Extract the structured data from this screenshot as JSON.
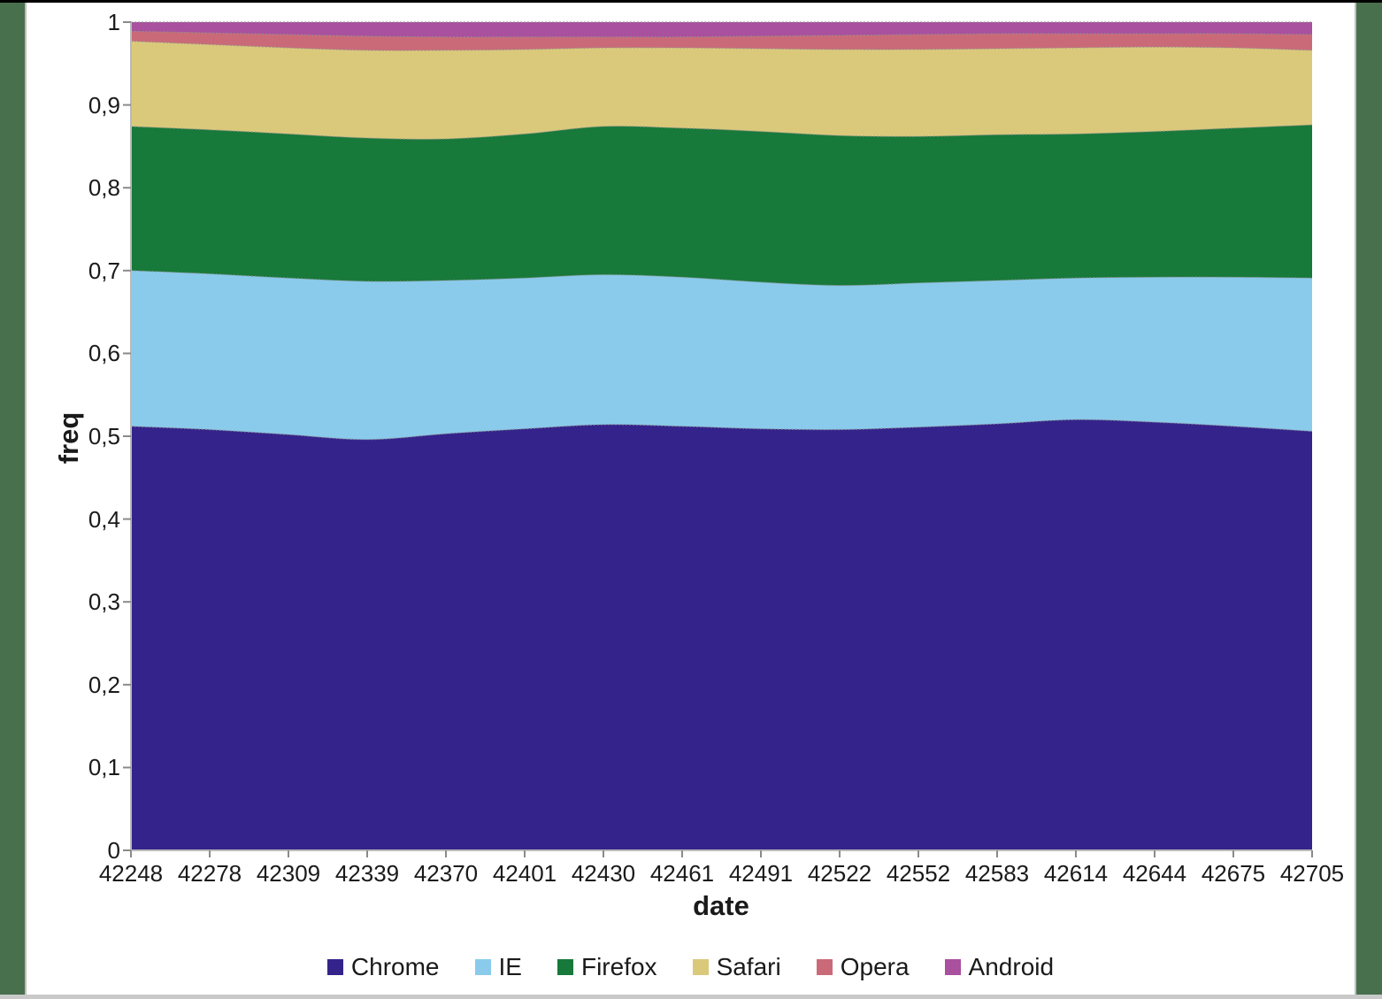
{
  "page": {
    "background_color": "#48704D",
    "canvas_color": "#FFFFFF",
    "top_strip_color": "#000000",
    "bottom_strip_color": "#C9C9C9",
    "canvas_border_color": "#BEBEBE",
    "text_color": "#1A1A1A",
    "axis_line_color": "#B9B9B9",
    "tick_mark_color": "#8A8A8A",
    "boundary_line_color": "#909090"
  },
  "chart_data": {
    "type": "area",
    "stacked": true,
    "normalized": true,
    "title": "",
    "xlabel": "date",
    "ylabel": "freq",
    "ylim": [
      0,
      1
    ],
    "grid": false,
    "legend_position": "bottom",
    "x": [
      42248,
      42278,
      42309,
      42339,
      42370,
      42401,
      42430,
      42461,
      42491,
      42522,
      42552,
      42583,
      42614,
      42644,
      42675,
      42705
    ],
    "x_tick_labels": [
      "42248",
      "42278",
      "42309",
      "42339",
      "42370",
      "42401",
      "42430",
      "42461",
      "42491",
      "42522",
      "42552",
      "42583",
      "42614",
      "42644",
      "42675",
      "42705"
    ],
    "y_tick_labels": [
      "0",
      "0,1",
      "0,2",
      "0,3",
      "0,4",
      "0,5",
      "0,6",
      "0,7",
      "0,8",
      "0,9",
      "1"
    ],
    "series": [
      {
        "name": "Chrome",
        "color": "#34238B",
        "values": [
          0.512,
          0.508,
          0.502,
          0.496,
          0.503,
          0.509,
          0.514,
          0.512,
          0.509,
          0.508,
          0.511,
          0.515,
          0.52,
          0.517,
          0.512,
          0.506
        ]
      },
      {
        "name": "IE",
        "color": "#8ACBEC",
        "values": [
          0.188,
          0.188,
          0.189,
          0.191,
          0.185,
          0.182,
          0.181,
          0.18,
          0.177,
          0.174,
          0.174,
          0.173,
          0.171,
          0.175,
          0.18,
          0.185
        ]
      },
      {
        "name": "Firefox",
        "color": "#17793A",
        "values": [
          0.174,
          0.174,
          0.174,
          0.173,
          0.171,
          0.174,
          0.179,
          0.18,
          0.182,
          0.181,
          0.177,
          0.176,
          0.174,
          0.176,
          0.18,
          0.185
        ]
      },
      {
        "name": "Safari",
        "color": "#DBC97B",
        "values": [
          0.103,
          0.103,
          0.104,
          0.106,
          0.107,
          0.102,
          0.095,
          0.097,
          0.1,
          0.104,
          0.105,
          0.104,
          0.104,
          0.102,
          0.097,
          0.09
        ]
      },
      {
        "name": "Opera",
        "color": "#CA6A78",
        "values": [
          0.012,
          0.014,
          0.016,
          0.017,
          0.016,
          0.015,
          0.013,
          0.013,
          0.015,
          0.017,
          0.018,
          0.018,
          0.017,
          0.016,
          0.017,
          0.019
        ]
      },
      {
        "name": "Android",
        "color": "#A9509E",
        "values": [
          0.011,
          0.013,
          0.015,
          0.017,
          0.018,
          0.018,
          0.018,
          0.018,
          0.017,
          0.016,
          0.015,
          0.014,
          0.014,
          0.014,
          0.014,
          0.015
        ]
      }
    ]
  }
}
